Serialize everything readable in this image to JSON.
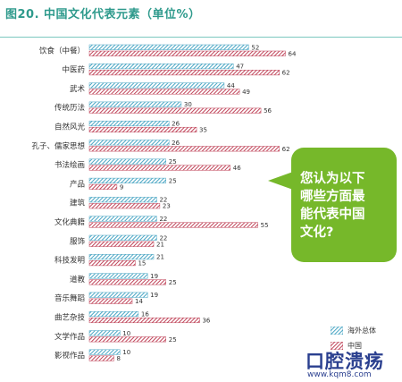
{
  "chart_data": {
    "type": "bar",
    "title": "图20. 中国文化代表元素（单位%）",
    "categories": [
      "饮食（中餐）",
      "中医药",
      "武术",
      "传统历法",
      "自然风光",
      "孔子、儒家思想",
      "书法绘画",
      "产品",
      "建筑",
      "文化典籍",
      "服饰",
      "科技发明",
      "道教",
      "音乐舞蹈",
      "曲艺杂技",
      "文学作品",
      "影视作品"
    ],
    "series": [
      {
        "name": "海外总体",
        "values": [
          52,
          47,
          44,
          30,
          26,
          26,
          25,
          25,
          22,
          22,
          22,
          21,
          19,
          19,
          16,
          10,
          10
        ]
      },
      {
        "name": "中国",
        "values": [
          64,
          62,
          49,
          56,
          35,
          62,
          46,
          9,
          23,
          55,
          21,
          15,
          25,
          14,
          36,
          25,
          8
        ]
      }
    ],
    "xlim": [
      0,
      70
    ],
    "grid": false,
    "legend": "bottom-right"
  },
  "colors": {
    "overseas": "#4aa6c4",
    "china": "#c0455a",
    "title": "#2e9a8c",
    "callout": "#76b82a"
  },
  "callout": {
    "text": "您认为以下\n哪些方面最\n能代表中国\n文化?"
  },
  "watermark": {
    "logo": "口腔溃疡",
    "url": "www.kqm8.com"
  }
}
